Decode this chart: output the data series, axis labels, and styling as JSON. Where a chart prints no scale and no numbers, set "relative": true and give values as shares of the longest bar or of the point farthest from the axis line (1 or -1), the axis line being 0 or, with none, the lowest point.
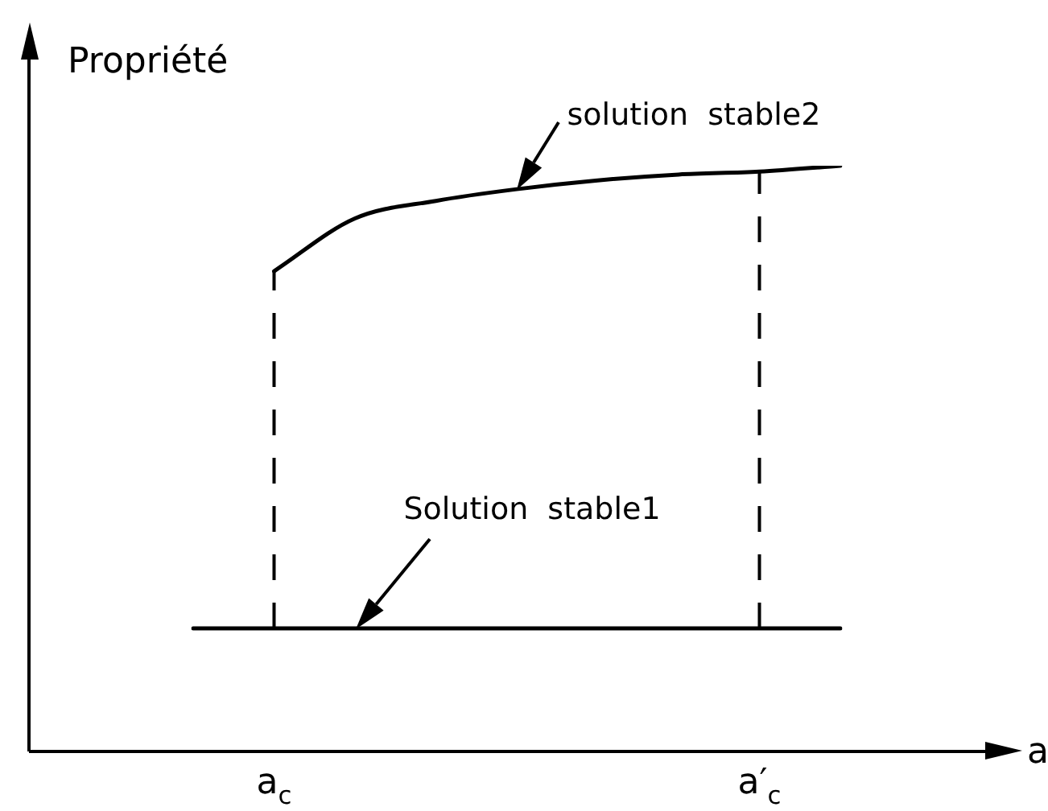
{
  "chart_data": {
    "type": "line",
    "relative": true,
    "xlabel": "a",
    "ylabel": "Propriété",
    "categories": [
      null,
      "a$_{c}$",
      null,
      null,
      null,
      null,
      null,
      "a′$_{c}$",
      null
    ],
    "tick_labels": "x",
    "grid": false,
    "legend": false,
    "marker": "none",
    "line_style": "solid",
    "series": [
      {
        "color": "#000000",
        "values": [
          0.21,
          0.21,
          0.21,
          0.21,
          0.21,
          0.21,
          0.21,
          0.21,
          0.21
        ]
      },
      {
        "color": "#000000",
        "values": [
          null,
          0.82,
          0.91,
          0.94,
          0.96,
          0.975,
          0.985,
          0.99,
          1
        ]
      }
    ],
    "ref_lines": [
      {
        "axis": "x",
        "value": "a$_{c}$",
        "line_style": "dashed"
      },
      {
        "axis": "x",
        "value": "a′$_{c}$",
        "line_style": "dashed"
      }
    ],
    "annotations": [
      "solution  stable2",
      "Solution  stable1"
    ]
  }
}
